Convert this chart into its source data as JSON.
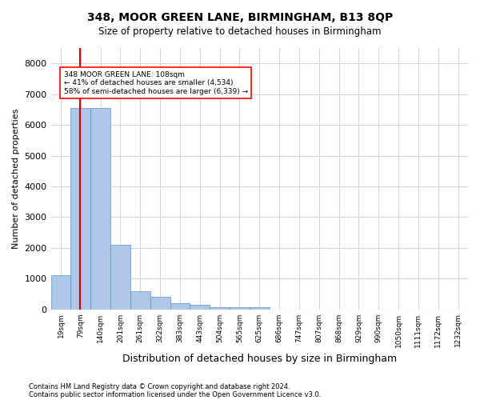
{
  "title": "348, MOOR GREEN LANE, BIRMINGHAM, B13 8QP",
  "subtitle": "Size of property relative to detached houses in Birmingham",
  "xlabel": "Distribution of detached houses by size in Birmingham",
  "ylabel": "Number of detached properties",
  "footnote1": "Contains HM Land Registry data © Crown copyright and database right 2024.",
  "footnote2": "Contains public sector information licensed under the Open Government Licence v3.0.",
  "annotation_line1": "348 MOOR GREEN LANE: 108sqm",
  "annotation_line2": "← 41% of detached houses are smaller (4,534)",
  "annotation_line3": "58% of semi-detached houses are larger (6,339) →",
  "property_size_sqm": 108,
  "bar_color": "#aec6e8",
  "bar_edge_color": "#5a8fc0",
  "vline_color": "#cc0000",
  "ylim": [
    0,
    8500
  ],
  "yticks": [
    0,
    1000,
    2000,
    3000,
    4000,
    5000,
    6000,
    7000,
    8000
  ],
  "bin_labels": [
    "19sqm",
    "79sqm",
    "140sqm",
    "201sqm",
    "261sqm",
    "322sqm",
    "383sqm",
    "443sqm",
    "504sqm",
    "565sqm",
    "625sqm",
    "686sqm",
    "747sqm",
    "807sqm",
    "868sqm",
    "929sqm",
    "990sqm",
    "1050sqm",
    "1111sqm",
    "1172sqm",
    "1232sqm"
  ],
  "bar_heights": [
    1100,
    6550,
    6550,
    2100,
    600,
    400,
    200,
    150,
    80,
    70,
    60,
    0,
    0,
    0,
    0,
    0,
    0,
    0,
    0,
    0,
    0
  ],
  "bin_edges": [
    19,
    79,
    140,
    201,
    261,
    322,
    383,
    443,
    504,
    565,
    625,
    686,
    747,
    807,
    868,
    929,
    990,
    1050,
    1111,
    1172,
    1232
  ],
  "background_color": "#ffffff",
  "grid_color": "#d0d8e8"
}
